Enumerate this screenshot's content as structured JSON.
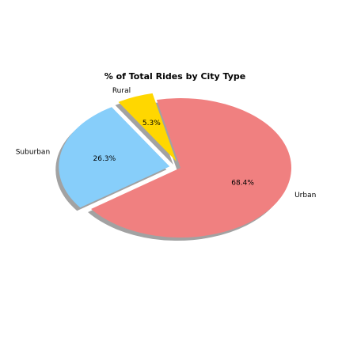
{
  "chart_data": {
    "type": "pie",
    "title": "% of Total Rides by City Type",
    "categories": [
      "Urban",
      "Rural",
      "Suburban"
    ],
    "values": [
      68.4,
      5.3,
      26.3
    ],
    "value_labels": [
      "68.4%",
      "5.3%",
      "26.3%"
    ],
    "colors": [
      "#F08080",
      "#FFD700",
      "#87CEFA"
    ],
    "explode": [
      0,
      0.1,
      0.1
    ],
    "start_angle_deg": 216.2,
    "shadow": true,
    "legend": "none"
  }
}
